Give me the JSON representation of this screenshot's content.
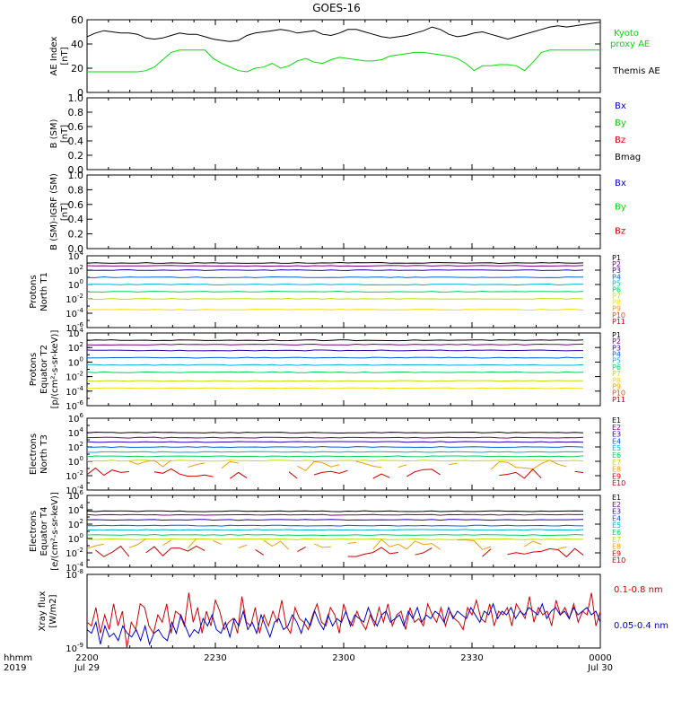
{
  "title": "GOES-16",
  "footer": {
    "time_label": "hhmm",
    "year_label": "2019",
    "x_ticks": [
      "2200",
      "2230",
      "2300",
      "2330",
      "0000"
    ],
    "date_start": "Jul 29",
    "date_end": "Jul 30"
  },
  "colors": {
    "black": "#000000",
    "green": "#00e000",
    "blue": "#0000cc",
    "red": "#d00000"
  },
  "chart_data": [
    {
      "type": "line",
      "title": "AE Index",
      "ylabel": "AE Index [nT]",
      "ylim": [
        0,
        60
      ],
      "yticks": [
        "0",
        "20",
        "40",
        "60"
      ],
      "x_range": [
        "2200",
        "0000"
      ],
      "series": [
        {
          "name": "Kyoto proxy AE",
          "label": "Kyoto\nproxy AE",
          "color": "#00e000",
          "values": [
            17,
            17,
            17,
            17,
            17,
            17,
            17,
            18,
            21,
            27,
            33,
            35,
            35,
            35,
            35,
            28,
            24,
            21,
            18,
            17,
            20,
            21,
            24,
            20,
            22,
            26,
            28,
            25,
            24,
            27,
            29,
            28,
            27,
            26,
            26,
            27,
            30,
            31,
            32,
            33,
            33,
            32,
            31,
            30,
            28,
            24,
            18,
            22,
            22,
            23,
            23,
            22,
            18,
            25,
            33,
            35,
            35,
            35,
            35,
            35,
            35,
            35
          ]
        },
        {
          "name": "Themis AE",
          "label": "Themis AE",
          "color": "#000000",
          "values": [
            46,
            49,
            51,
            50,
            49,
            49,
            48,
            45,
            44,
            45,
            47,
            49,
            48,
            48,
            46,
            44,
            43,
            42,
            43,
            47,
            49,
            50,
            51,
            52,
            51,
            49,
            50,
            51,
            48,
            47,
            49,
            52,
            52,
            50,
            48,
            46,
            45,
            46,
            47,
            49,
            51,
            54,
            52,
            48,
            46,
            47,
            49,
            50,
            48,
            46,
            44,
            46,
            48,
            50,
            52,
            54,
            55,
            54,
            55,
            56,
            57,
            58
          ]
        }
      ]
    },
    {
      "type": "line",
      "title": "B (SM)",
      "ylabel": "B (SM) [nT]",
      "ylim": [
        0,
        1
      ],
      "yticks": [
        "0.0",
        "0.2",
        "0.4",
        "0.6",
        "0.8",
        "1.0"
      ],
      "legend": [
        {
          "label": "Bx",
          "color": "#0000cc"
        },
        {
          "label": "By",
          "color": "#00e000"
        },
        {
          "label": "Bz",
          "color": "#d00000"
        },
        {
          "label": "Bmag",
          "color": "#000000"
        }
      ],
      "series": []
    },
    {
      "type": "line",
      "title": "B (SM)-IGRF (SM)",
      "ylabel": "B (SM)-IGRF (SM) [nT]",
      "ylim": [
        0,
        1
      ],
      "yticks": [
        "0.0",
        "0.2",
        "0.4",
        "0.6",
        "0.8",
        "1.0"
      ],
      "legend": [
        {
          "label": "Bx",
          "color": "#0000cc"
        },
        {
          "label": "By",
          "color": "#00e000"
        },
        {
          "label": "Bz",
          "color": "#d00000"
        }
      ],
      "series": []
    },
    {
      "type": "line",
      "title": "Protons North T1",
      "ylabel": "Protons North T1",
      "yscale": "log",
      "ylim_exp": [
        -6,
        4
      ],
      "ytick_exps": [
        -6,
        -4,
        -2,
        0,
        2,
        4
      ],
      "series": [
        {
          "name": "P1",
          "color": "#000000",
          "log_level": 3.0
        },
        {
          "name": "P2",
          "color": "#7a0080",
          "log_level": 2.6
        },
        {
          "name": "P3",
          "color": "#2a00b0",
          "log_level": 2.0
        },
        {
          "name": "P4",
          "color": "#0060e0",
          "log_level": 1.0
        },
        {
          "name": "P5",
          "color": "#00b0d0",
          "log_level": 0.0
        },
        {
          "name": "P6",
          "color": "#00d060",
          "log_level": -1.0
        },
        {
          "name": "P7",
          "color": "#c0e000",
          "log_level": -2.0
        },
        {
          "name": "P8",
          "color": "#f0e000",
          "log_level": -3.5
        },
        {
          "name": "P9",
          "color": "#f0a000"
        },
        {
          "name": "P10",
          "color": "#e05000"
        },
        {
          "name": "P11",
          "color": "#d00000"
        }
      ]
    },
    {
      "type": "line",
      "title": "Protons Equator T2",
      "ylabel": "Protons Equator T2 [p/(cm²-s-sr-keV)]",
      "yscale": "log",
      "ylim_exp": [
        -6,
        4
      ],
      "ytick_exps": [
        -6,
        -4,
        -2,
        0,
        2,
        4
      ],
      "series": [
        {
          "name": "P1",
          "color": "#000000",
          "log_level": 3.0
        },
        {
          "name": "P2",
          "color": "#7a0080",
          "log_level": 2.4
        },
        {
          "name": "P3",
          "color": "#2a00b0",
          "log_level": 1.6
        },
        {
          "name": "P4",
          "color": "#0060e0",
          "log_level": 0.6
        },
        {
          "name": "P5",
          "color": "#00b0d0",
          "log_level": -0.4
        },
        {
          "name": "P6",
          "color": "#00d060",
          "log_level": -1.4
        },
        {
          "name": "P7",
          "color": "#c0e000",
          "log_level": -2.6
        },
        {
          "name": "P8",
          "color": "#f0e000",
          "log_level": -3.6
        },
        {
          "name": "P9",
          "color": "#f0a000"
        },
        {
          "name": "P10",
          "color": "#e05000"
        },
        {
          "name": "P11",
          "color": "#d00000"
        }
      ]
    },
    {
      "type": "line",
      "title": "Electrons North T3",
      "ylabel": "Electrons North T3",
      "yscale": "log",
      "ylim_exp": [
        -4,
        6
      ],
      "ytick_exps": [
        -4,
        -2,
        0,
        2,
        4,
        6
      ],
      "series": [
        {
          "name": "E1",
          "color": "#000000",
          "log_level": 4.0
        },
        {
          "name": "E2",
          "color": "#7a0080",
          "log_level": 3.3
        },
        {
          "name": "E3",
          "color": "#2a00b0",
          "log_level": 2.7
        },
        {
          "name": "E4",
          "color": "#0060e0",
          "log_level": 2.0
        },
        {
          "name": "E5",
          "color": "#00b0d0",
          "log_level": 1.3
        },
        {
          "name": "E6",
          "color": "#00d060",
          "log_level": 0.7
        },
        {
          "name": "E7",
          "color": "#c0e000",
          "log_level": 0.1
        },
        {
          "name": "E8",
          "color": "#f0a000",
          "log_level": -0.6
        },
        {
          "name": "E9",
          "color": "#d00000",
          "log_level": -1.6
        },
        {
          "name": "E10",
          "color": "#d00000"
        }
      ]
    },
    {
      "type": "line",
      "title": "Electrons Equator T4",
      "ylabel": "Electrons Equator T4 [e/(cm²-s-sr-keV)]",
      "yscale": "log",
      "ylim_exp": [
        -4,
        6
      ],
      "ytick_exps": [
        -4,
        -2,
        0,
        2,
        4,
        6
      ],
      "series": [
        {
          "name": "E1",
          "color": "#000000",
          "log_level": 3.8
        },
        {
          "name": "E2",
          "color": "#7a0080",
          "log_level": 3.3
        },
        {
          "name": "E3",
          "color": "#2a00b0",
          "log_level": 2.6
        },
        {
          "name": "E4",
          "color": "#0060e0",
          "log_level": 1.8
        },
        {
          "name": "E5",
          "color": "#00b0d0",
          "log_level": 1.2
        },
        {
          "name": "E6",
          "color": "#00d060",
          "log_level": 0.5
        },
        {
          "name": "E7",
          "color": "#c0e000",
          "log_level": -0.1
        },
        {
          "name": "E8",
          "color": "#f0a000",
          "log_level": -0.8
        },
        {
          "name": "E9",
          "color": "#d00000",
          "log_level": -1.8
        },
        {
          "name": "E10",
          "color": "#d00000"
        }
      ]
    },
    {
      "type": "line",
      "title": "Xray flux",
      "ylabel": "Xray flux [W/m2]",
      "yscale": "log",
      "ylim_exp": [
        -9,
        -8
      ],
      "ytick_exps": [
        -9,
        -8
      ],
      "series": [
        {
          "name": "0.1-0.8 nm",
          "color": "#d00000",
          "values": [
            0.35,
            0.3,
            0.55,
            0.2,
            0.45,
            0.25,
            0.6,
            0.3,
            0.5,
            0.0,
            0.35,
            0.25,
            0.6,
            0.55,
            0.3,
            0.2,
            0.45,
            0.35,
            0.6,
            0.2,
            0.5,
            0.45,
            0.3,
            0.75,
            0.35,
            0.55,
            0.2,
            0.5,
            0.3,
            0.65,
            0.5,
            0.25,
            0.35,
            0.4,
            0.2,
            0.7,
            0.35,
            0.3,
            0.55,
            0.2,
            0.45,
            0.3,
            0.5,
            0.35,
            0.65,
            0.3,
            0.2,
            0.55,
            0.4,
            0.35,
            0.25,
            0.45,
            0.6,
            0.35,
            0.3,
            0.55,
            0.45,
            0.2,
            0.6,
            0.4,
            0.3,
            0.5,
            0.35,
            0.25,
            0.45,
            0.3,
            0.55,
            0.35,
            0.6,
            0.3,
            0.45,
            0.5,
            0.25,
            0.55,
            0.35,
            0.4,
            0.3,
            0.6,
            0.45,
            0.35,
            0.55,
            0.3,
            0.5,
            0.4,
            0.35,
            0.25,
            0.55,
            0.45,
            0.65,
            0.4,
            0.35,
            0.6,
            0.3,
            0.5,
            0.45,
            0.55,
            0.3,
            0.6,
            0.5,
            0.4,
            0.7,
            0.35,
            0.55,
            0.45,
            0.5,
            0.3,
            0.65,
            0.45,
            0.55,
            0.4,
            0.6,
            0.35,
            0.5,
            0.45,
            0.75,
            0.3,
            0.5
          ]
        },
        {
          "name": "0.05-0.4 nm",
          "color": "#0000cc",
          "values": [
            0.25,
            0.2,
            0.35,
            0.05,
            0.3,
            0.15,
            0.2,
            0.1,
            0.3,
            0.2,
            0.15,
            0.25,
            0.1,
            0.3,
            0.05,
            0.2,
            0.25,
            0.15,
            0.1,
            0.35,
            0.2,
            0.45,
            0.3,
            0.15,
            0.25,
            0.2,
            0.4,
            0.3,
            0.45,
            0.25,
            0.2,
            0.35,
            0.15,
            0.4,
            0.3,
            0.5,
            0.25,
            0.35,
            0.2,
            0.45,
            0.3,
            0.15,
            0.35,
            0.4,
            0.25,
            0.3,
            0.45,
            0.35,
            0.2,
            0.4,
            0.3,
            0.5,
            0.35,
            0.25,
            0.45,
            0.3,
            0.4,
            0.35,
            0.5,
            0.3,
            0.45,
            0.4,
            0.35,
            0.55,
            0.4,
            0.3,
            0.45,
            0.5,
            0.35,
            0.4,
            0.45,
            0.3,
            0.5,
            0.4,
            0.55,
            0.35,
            0.45,
            0.4,
            0.5,
            0.45,
            0.35,
            0.55,
            0.4,
            0.5,
            0.45,
            0.4,
            0.55,
            0.45,
            0.35,
            0.5,
            0.45,
            0.6,
            0.4,
            0.5,
            0.45,
            0.55,
            0.4,
            0.5,
            0.45,
            0.55,
            0.5,
            0.45,
            0.6,
            0.4,
            0.5,
            0.55,
            0.45,
            0.5,
            0.4,
            0.55,
            0.45,
            0.5,
            0.55,
            0.45,
            0.5,
            0.35
          ]
        }
      ]
    }
  ]
}
